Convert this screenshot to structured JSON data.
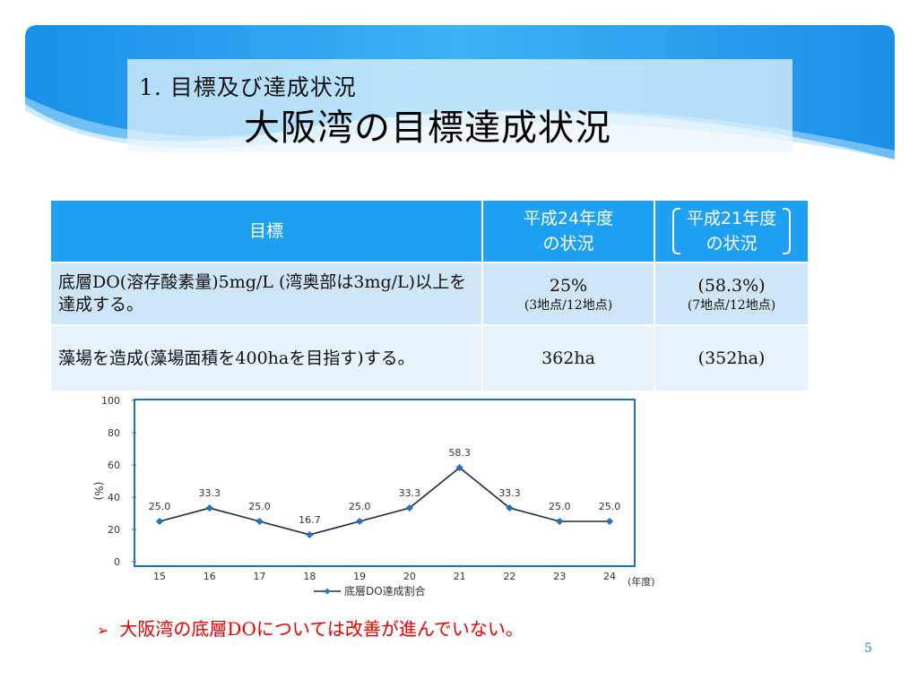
{
  "slide": {
    "subtitle": "1. 目標及び達成状況",
    "title": "大阪湾の目標達成状況",
    "page_number": "5",
    "note": "大阪湾の底層DOについては改善が進んでいない。",
    "note_bullet": "➢",
    "colors": {
      "banner": "#1e9bf0",
      "header": "#1ea1f3",
      "note": "#e60000",
      "line": "#1a2a3a",
      "marker": "#1f78c8"
    }
  },
  "table": {
    "headers": {
      "goal": "目標",
      "h24_line1": "平成24年度",
      "h24_line2": "の状況",
      "h21_line1": "平成21年度",
      "h21_line2": "の状況"
    },
    "rows": [
      {
        "goal": "底層DO(溶存酸素量)5mg/L (湾奥部は3mg/L)以上を達成する。",
        "h24": "25%",
        "h24_sub": "(3地点/12地点)",
        "h21": "(58.3%)",
        "h21_sub": "(7地点/12地点)"
      },
      {
        "goal": "藻場を造成(藻場面積を400haを目指す)する。",
        "h24": "362ha",
        "h24_sub": "",
        "h21": "(352ha)",
        "h21_sub": ""
      }
    ]
  },
  "chart_data": {
    "type": "line",
    "x": [
      "15",
      "16",
      "17",
      "18",
      "19",
      "20",
      "21",
      "22",
      "23",
      "24"
    ],
    "series": [
      {
        "name": "底層DO達成割合",
        "values": [
          25.0,
          33.3,
          25.0,
          16.7,
          25.0,
          33.3,
          58.3,
          33.3,
          25.0,
          25.0
        ],
        "labels": [
          "25.0",
          "33.3",
          "25.0",
          "16.7",
          "25.0",
          "33.3",
          "58.3",
          "33.3",
          "25.0",
          "25.0"
        ]
      }
    ],
    "ylim": [
      0,
      100
    ],
    "yticks": [
      "0",
      "20",
      "40",
      "60",
      "80",
      "100"
    ],
    "ylabel": "(%)",
    "xlabel": "(年度)",
    "legend_position": "bottom",
    "grid": false
  }
}
